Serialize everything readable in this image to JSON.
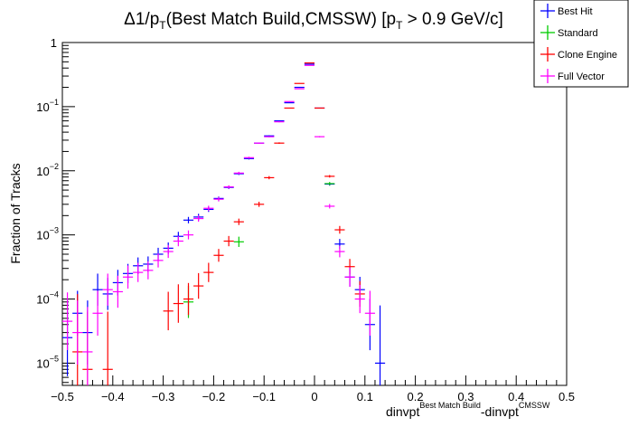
{
  "chart_data": {
    "type": "scatter",
    "title_parts": {
      "delta": "Δ1/p",
      "sub_t1": "T",
      "middle": "(Best Match Build,CMSSW) [p",
      "sub_t2": "T",
      "tail": " > 0.9 GeV/c]"
    },
    "ylabel": "Fraction of Tracks",
    "xlabel_parts": {
      "base1": "dinvpt",
      "sup1": "Best Match Build",
      "base2": "-dinvpt",
      "sup2": "CMSSW"
    },
    "x_range": [
      -0.5,
      0.5
    ],
    "y_range": [
      4.5e-06,
      1
    ],
    "y_scale": "log",
    "x_ticks": [
      "−0.5",
      "−0.4",
      "−0.3",
      "−0.2",
      "−0.1",
      "0",
      "0.1",
      "0.2",
      "0.3",
      "0.4",
      "0.5"
    ],
    "x_tick_values": [
      -0.5,
      -0.4,
      -0.3,
      -0.2,
      -0.1,
      0,
      0.1,
      0.2,
      0.3,
      0.4,
      0.5
    ],
    "y_ticks": [
      {
        "value": 1,
        "base": "1",
        "exp": ""
      },
      {
        "value": 0.1,
        "base": "10",
        "exp": "−1"
      },
      {
        "value": 0.01,
        "base": "10",
        "exp": "−2"
      },
      {
        "value": 0.001,
        "base": "10",
        "exp": "−3"
      },
      {
        "value": 0.0001,
        "base": "10",
        "exp": "−4"
      },
      {
        "value": 1e-05,
        "base": "10",
        "exp": "−5"
      }
    ],
    "legend_position": "top-right",
    "bin_half_width": 0.01,
    "series": [
      {
        "name": "Best Hit",
        "color": "#0000ff",
        "points": [
          {
            "x": -0.49,
            "y": 2.5e-05,
            "err": 0.6
          },
          {
            "x": -0.47,
            "y": 6e-05,
            "err": 0.35
          },
          {
            "x": -0.45,
            "y": 3e-05,
            "err": 0.5
          },
          {
            "x": -0.43,
            "y": 0.00014,
            "err": 0.25
          },
          {
            "x": -0.41,
            "y": 0.00012,
            "err": 0.25
          },
          {
            "x": -0.39,
            "y": 0.00018,
            "err": 0.2
          },
          {
            "x": -0.37,
            "y": 0.00025,
            "err": 0.15
          },
          {
            "x": -0.35,
            "y": 0.00033,
            "err": 0.13
          },
          {
            "x": -0.33,
            "y": 0.00035,
            "err": 0.12
          },
          {
            "x": -0.31,
            "y": 0.0005,
            "err": 0.1
          },
          {
            "x": -0.29,
            "y": 0.00062,
            "err": 0.09
          },
          {
            "x": -0.27,
            "y": 0.00095,
            "err": 0.07
          },
          {
            "x": -0.25,
            "y": 0.0017,
            "err": 0.05
          },
          {
            "x": -0.23,
            "y": 0.0019,
            "err": 0.05
          },
          {
            "x": -0.21,
            "y": 0.0025,
            "err": 0.04
          },
          {
            "x": -0.19,
            "y": 0.0037,
            "err": 0.03
          },
          {
            "x": -0.17,
            "y": 0.0055,
            "err": 0.025
          },
          {
            "x": -0.15,
            "y": 0.009,
            "err": 0.02
          },
          {
            "x": -0.13,
            "y": 0.0155,
            "err": 0.015
          },
          {
            "x": -0.11,
            "y": 0.027,
            "err": 0.01
          },
          {
            "x": -0.09,
            "y": 0.035,
            "err": 0.01
          },
          {
            "x": -0.07,
            "y": 0.06,
            "err": 0.008
          },
          {
            "x": -0.05,
            "y": 0.115,
            "err": 0.005
          },
          {
            "x": -0.03,
            "y": 0.2,
            "err": 0.004
          },
          {
            "x": -0.01,
            "y": 0.46,
            "err": 0.003
          },
          {
            "x": 0.01,
            "y": 0.095,
            "err": 0.005
          },
          {
            "x": 0.03,
            "y": 0.0062,
            "err": 0.025
          },
          {
            "x": 0.05,
            "y": 0.00072,
            "err": 0.08
          },
          {
            "x": 0.07,
            "y": 0.00022,
            "err": 0.15
          },
          {
            "x": 0.09,
            "y": 0.00014,
            "err": 0.2
          },
          {
            "x": 0.11,
            "y": 4e-05,
            "err": 0.4
          },
          {
            "x": 0.13,
            "y": 1e-05,
            "err": 0.9
          }
        ]
      },
      {
        "name": "Standard",
        "color": "#00cc00",
        "points": [
          {
            "x": -0.15,
            "y": 0.00078,
            "err": 0.08
          },
          {
            "x": -0.25,
            "y": 9e-05,
            "err": 0.25
          },
          {
            "x": 0.03,
            "y": 0.0063,
            "err": 0.025
          }
        ]
      },
      {
        "name": "Clone Engine",
        "color": "#ff0000",
        "points": [
          {
            "x": -0.47,
            "y": 1.5e-05,
            "err": 0.9
          },
          {
            "x": -0.45,
            "y": 8e-06,
            "err": 0.9
          },
          {
            "x": -0.41,
            "y": 8e-06,
            "err": 0.9
          },
          {
            "x": -0.29,
            "y": 6.5e-05,
            "err": 0.3
          },
          {
            "x": -0.27,
            "y": 8.5e-05,
            "err": 0.3
          },
          {
            "x": -0.25,
            "y": 0.0001,
            "err": 0.25
          },
          {
            "x": -0.23,
            "y": 0.00016,
            "err": 0.2
          },
          {
            "x": -0.21,
            "y": 0.00026,
            "err": 0.15
          },
          {
            "x": -0.19,
            "y": 0.00048,
            "err": 0.1
          },
          {
            "x": -0.17,
            "y": 0.0008,
            "err": 0.08
          },
          {
            "x": -0.15,
            "y": 0.0016,
            "err": 0.05
          },
          {
            "x": -0.11,
            "y": 0.003,
            "err": 0.04
          },
          {
            "x": -0.09,
            "y": 0.0078,
            "err": 0.025
          },
          {
            "x": -0.07,
            "y": 0.027,
            "err": 0.012
          },
          {
            "x": -0.05,
            "y": 0.095,
            "err": 0.006
          },
          {
            "x": -0.03,
            "y": 0.23,
            "err": 0.004
          },
          {
            "x": -0.01,
            "y": 0.48,
            "err": 0.003
          },
          {
            "x": 0.01,
            "y": 0.095,
            "err": 0.005
          },
          {
            "x": 0.03,
            "y": 0.0082,
            "err": 0.02
          },
          {
            "x": 0.05,
            "y": 0.0012,
            "err": 0.06
          },
          {
            "x": 0.07,
            "y": 0.00032,
            "err": 0.12
          },
          {
            "x": 0.09,
            "y": 0.00012,
            "err": 0.2
          }
        ]
      },
      {
        "name": "Full Vector",
        "color": "#ff00ff",
        "points": [
          {
            "x": -0.49,
            "y": 4.5e-05,
            "err": 0.45
          },
          {
            "x": -0.47,
            "y": 3e-05,
            "err": 0.5
          },
          {
            "x": -0.45,
            "y": 1.5e-05,
            "err": 0.7
          },
          {
            "x": -0.43,
            "y": 6e-05,
            "err": 0.35
          },
          {
            "x": -0.41,
            "y": 0.00014,
            "err": 0.25
          },
          {
            "x": -0.39,
            "y": 0.00013,
            "err": 0.25
          },
          {
            "x": -0.37,
            "y": 0.00022,
            "err": 0.18
          },
          {
            "x": -0.35,
            "y": 0.00026,
            "err": 0.15
          },
          {
            "x": -0.33,
            "y": 0.00028,
            "err": 0.14
          },
          {
            "x": -0.31,
            "y": 0.0004,
            "err": 0.11
          },
          {
            "x": -0.29,
            "y": 0.00055,
            "err": 0.1
          },
          {
            "x": -0.27,
            "y": 0.0008,
            "err": 0.08
          },
          {
            "x": -0.25,
            "y": 0.001,
            "err": 0.07
          },
          {
            "x": -0.23,
            "y": 0.0018,
            "err": 0.05
          },
          {
            "x": -0.21,
            "y": 0.0026,
            "err": 0.04
          },
          {
            "x": -0.19,
            "y": 0.0036,
            "err": 0.035
          },
          {
            "x": -0.17,
            "y": 0.0056,
            "err": 0.025
          },
          {
            "x": -0.15,
            "y": 0.0092,
            "err": 0.02
          },
          {
            "x": -0.13,
            "y": 0.016,
            "err": 0.015
          },
          {
            "x": -0.11,
            "y": 0.027,
            "err": 0.01
          },
          {
            "x": -0.09,
            "y": 0.034,
            "err": 0.01
          },
          {
            "x": -0.07,
            "y": 0.058,
            "err": 0.008
          },
          {
            "x": -0.05,
            "y": 0.12,
            "err": 0.005
          },
          {
            "x": -0.03,
            "y": 0.19,
            "err": 0.004
          },
          {
            "x": -0.01,
            "y": 0.44,
            "err": 0.003
          },
          {
            "x": 0.01,
            "y": 0.034,
            "err": 0.01
          },
          {
            "x": 0.03,
            "y": 0.0028,
            "err": 0.035
          },
          {
            "x": 0.05,
            "y": 0.00055,
            "err": 0.09
          },
          {
            "x": 0.07,
            "y": 0.00022,
            "err": 0.15
          },
          {
            "x": 0.09,
            "y": 0.0001,
            "err": 0.22
          },
          {
            "x": 0.11,
            "y": 6e-05,
            "err": 0.35
          }
        ]
      }
    ]
  }
}
